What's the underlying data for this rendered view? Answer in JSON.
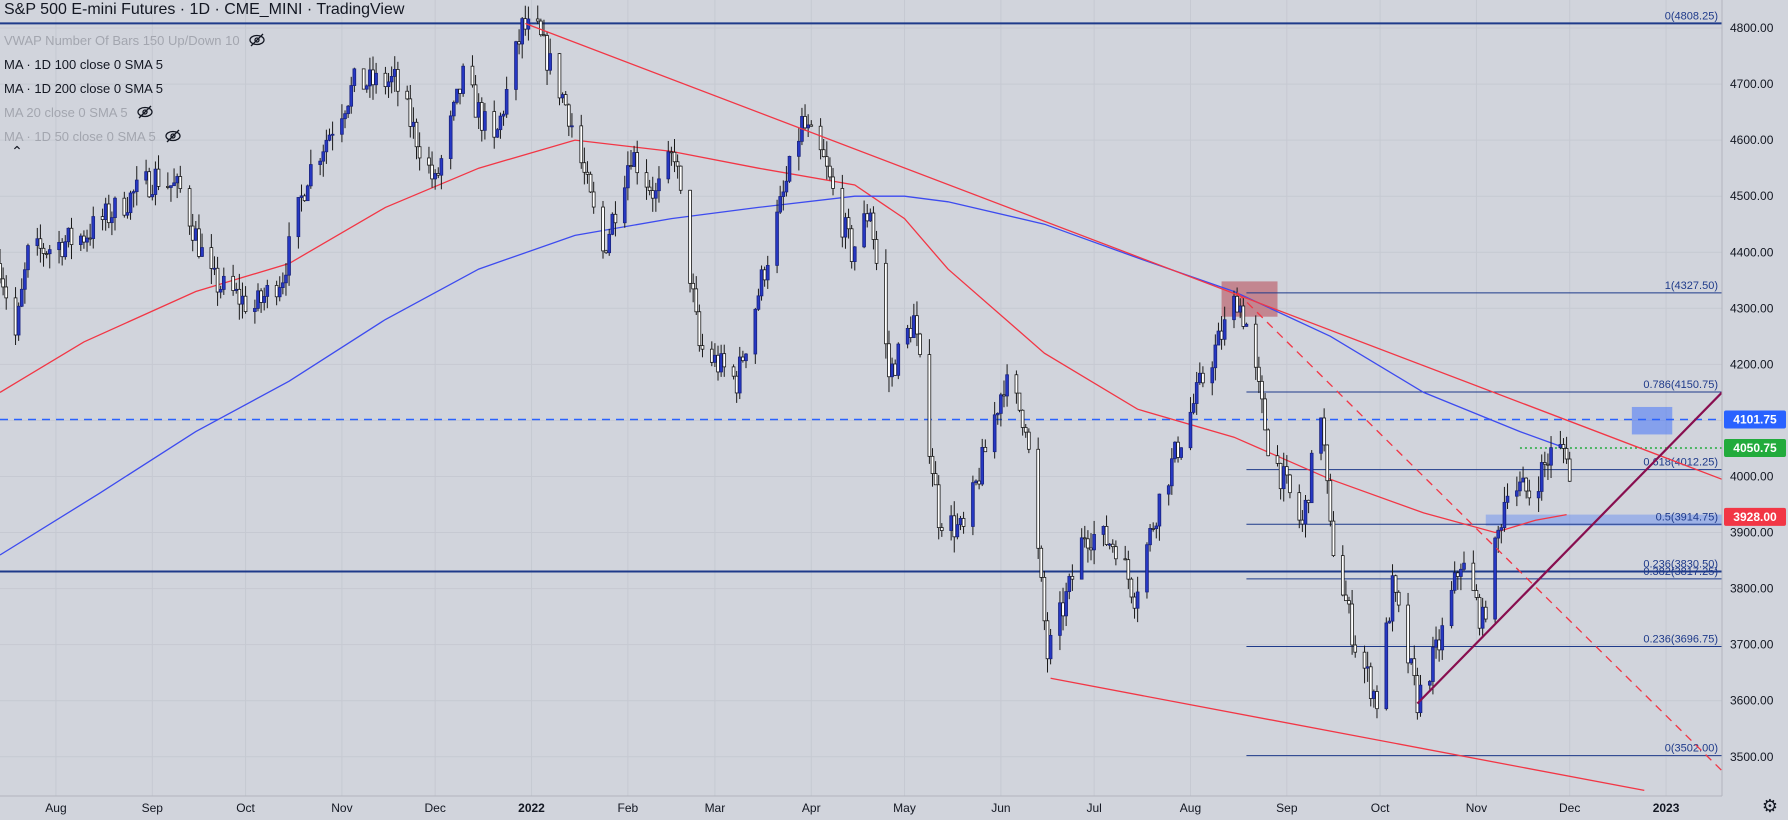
{
  "title": "S&P 500 E-mini Futures · 1D · CME_MINI · TradingView",
  "legend": [
    {
      "label": "VWAP Number Of Bars 150 Up/Down 10",
      "hidden": true
    },
    {
      "label": "MA · 1D 100 close 0 SMA 5",
      "hidden": false
    },
    {
      "label": "MA · 1D 200 close 0 SMA 5",
      "hidden": false
    },
    {
      "label": "MA 20 close 0 SMA 5",
      "hidden": true
    },
    {
      "label": "MA · 1D 50 close 0 SMA 5",
      "hidden": true
    }
  ],
  "icons": {
    "collapse": "chevron-up-icon",
    "settings": "gear-icon",
    "hidden_toggle": "eye-off-icon"
  },
  "chart_data": {
    "type": "candlestick",
    "y_range": [
      3430,
      4850
    ],
    "x_range": [
      "2021-07-14",
      "2023-01-19"
    ],
    "y_ticks": [
      3500,
      3600,
      3700,
      3800,
      3900,
      4000,
      4100,
      4200,
      4300,
      4400,
      4500,
      4600,
      4700,
      4800
    ],
    "y_tick_labels": [
      "3500.00",
      "3600.00",
      "3700.00",
      "3800.00",
      "3900.00",
      "4000.00",
      "4100.00",
      "4200.00",
      "4300.00",
      "4400.00",
      "4500.00",
      "4600.00",
      "4700.00",
      "4800.00"
    ],
    "x_ticks": [
      {
        "date": "2021-08-01",
        "label": "Aug",
        "bold": false
      },
      {
        "date": "2021-09-01",
        "label": "Sep",
        "bold": false
      },
      {
        "date": "2021-10-01",
        "label": "Oct",
        "bold": false
      },
      {
        "date": "2021-11-01",
        "label": "Nov",
        "bold": false
      },
      {
        "date": "2021-12-01",
        "label": "Dec",
        "bold": false
      },
      {
        "date": "2022-01-01",
        "label": "2022",
        "bold": true
      },
      {
        "date": "2022-02-01",
        "label": "Feb",
        "bold": false
      },
      {
        "date": "2022-03-01",
        "label": "Mar",
        "bold": false
      },
      {
        "date": "2022-04-01",
        "label": "Apr",
        "bold": false
      },
      {
        "date": "2022-05-01",
        "label": "May",
        "bold": false
      },
      {
        "date": "2022-06-01",
        "label": "Jun",
        "bold": false
      },
      {
        "date": "2022-07-01",
        "label": "Jul",
        "bold": false
      },
      {
        "date": "2022-08-01",
        "label": "Aug",
        "bold": false
      },
      {
        "date": "2022-09-01",
        "label": "Sep",
        "bold": false
      },
      {
        "date": "2022-10-01",
        "label": "Oct",
        "bold": false
      },
      {
        "date": "2022-11-01",
        "label": "Nov",
        "bold": false
      },
      {
        "date": "2022-12-01",
        "label": "Dec",
        "bold": false
      },
      {
        "date": "2023-01-01",
        "label": "2023",
        "bold": true
      }
    ],
    "price_path": [
      [
        "2021-07-14",
        4380
      ],
      [
        "2021-07-19",
        4250
      ],
      [
        "2021-07-23",
        4395
      ],
      [
        "2021-08-10",
        4430
      ],
      [
        "2021-09-02",
        4535
      ],
      [
        "2021-09-10",
        4510
      ],
      [
        "2021-09-20",
        4350
      ],
      [
        "2021-10-04",
        4300
      ],
      [
        "2021-10-13",
        4360
      ],
      [
        "2021-10-21",
        4540
      ],
      [
        "2021-11-05",
        4700
      ],
      [
        "2021-11-18",
        4705
      ],
      [
        "2021-11-26",
        4590
      ],
      [
        "2021-12-01",
        4520
      ],
      [
        "2021-12-10",
        4710
      ],
      [
        "2021-12-20",
        4590
      ],
      [
        "2021-12-29",
        4800
      ],
      [
        "2022-01-03",
        4790
      ],
      [
        "2022-01-13",
        4650
      ],
      [
        "2022-01-24",
        4400
      ],
      [
        "2022-02-02",
        4580
      ],
      [
        "2022-02-10",
        4500
      ],
      [
        "2022-02-16",
        4580
      ],
      [
        "2022-02-24",
        4230
      ],
      [
        "2022-03-08",
        4170
      ],
      [
        "2022-03-16",
        4350
      ],
      [
        "2022-03-29",
        4630
      ],
      [
        "2022-04-05",
        4560
      ],
      [
        "2022-04-14",
        4400
      ],
      [
        "2022-04-20",
        4480
      ],
      [
        "2022-04-26",
        4180
      ],
      [
        "2022-05-04",
        4280
      ],
      [
        "2022-05-12",
        3930
      ],
      [
        "2022-05-20",
        3900
      ],
      [
        "2022-06-02",
        4170
      ],
      [
        "2022-06-09",
        4100
      ],
      [
        "2022-06-16",
        3680
      ],
      [
        "2022-06-23",
        3800
      ],
      [
        "2022-06-28",
        3900
      ],
      [
        "2022-07-08",
        3880
      ],
      [
        "2022-07-14",
        3790
      ],
      [
        "2022-07-22",
        3960
      ],
      [
        "2022-08-04",
        4160
      ],
      [
        "2022-08-16",
        4320
      ],
      [
        "2022-08-19",
        4270
      ],
      [
        "2022-08-26",
        4060
      ],
      [
        "2022-09-06",
        3910
      ],
      [
        "2022-09-12",
        4120
      ],
      [
        "2022-09-15",
        3900
      ],
      [
        "2022-09-23",
        3700
      ],
      [
        "2022-09-30",
        3600
      ],
      [
        "2022-10-05",
        3800
      ],
      [
        "2022-10-13",
        3600
      ],
      [
        "2022-10-20",
        3700
      ],
      [
        "2022-10-27",
        3850
      ],
      [
        "2022-11-03",
        3740
      ],
      [
        "2022-11-11",
        3990
      ],
      [
        "2022-11-18",
        3970
      ],
      [
        "2022-11-25",
        4040
      ],
      [
        "2022-11-30",
        4050
      ],
      [
        "2022-12-01",
        3990
      ]
    ],
    "sma_100": [
      [
        "2021-07-14",
        4150
      ],
      [
        "2021-08-10",
        4240
      ],
      [
        "2021-09-15",
        4330
      ],
      [
        "2021-10-15",
        4380
      ],
      [
        "2021-11-15",
        4480
      ],
      [
        "2021-12-15",
        4550
      ],
      [
        "2022-01-15",
        4600
      ],
      [
        "2022-02-15",
        4580
      ],
      [
        "2022-03-15",
        4550
      ],
      [
        "2022-04-15",
        4520
      ],
      [
        "2022-05-01",
        4460
      ],
      [
        "2022-05-15",
        4370
      ],
      [
        "2022-06-15",
        4220
      ],
      [
        "2022-07-15",
        4120
      ],
      [
        "2022-08-15",
        4070
      ],
      [
        "2022-09-15",
        3995
      ],
      [
        "2022-10-15",
        3935
      ],
      [
        "2022-11-07",
        3900
      ],
      [
        "2022-11-20",
        3922
      ],
      [
        "2022-11-30",
        3932
      ]
    ],
    "sma_200": [
      [
        "2021-07-14",
        3860
      ],
      [
        "2021-08-15",
        3970
      ],
      [
        "2021-09-15",
        4080
      ],
      [
        "2021-10-15",
        4170
      ],
      [
        "2021-11-15",
        4280
      ],
      [
        "2021-12-15",
        4370
      ],
      [
        "2022-01-15",
        4430
      ],
      [
        "2022-02-15",
        4460
      ],
      [
        "2022-03-15",
        4480
      ],
      [
        "2022-04-15",
        4500
      ],
      [
        "2022-05-01",
        4500
      ],
      [
        "2022-05-15",
        4490
      ],
      [
        "2022-06-15",
        4450
      ],
      [
        "2022-07-15",
        4390
      ],
      [
        "2022-08-15",
        4330
      ],
      [
        "2022-09-15",
        4250
      ],
      [
        "2022-10-15",
        4150
      ],
      [
        "2022-11-15",
        4080
      ],
      [
        "2022-11-30",
        4050
      ]
    ],
    "fibonacci": {
      "date_start": "2022-08-19",
      "date_end": "2023-01-19",
      "levels": [
        {
          "price": 4808.25,
          "label": "0(4808.25)"
        },
        {
          "price": 4327.5,
          "label": "1(4327.50)"
        },
        {
          "price": 4150.75,
          "label": "0.786(4150.75)"
        },
        {
          "price": 4012.25,
          "label": "0.618(4012.25)"
        },
        {
          "price": 3914.75,
          "label": "0.5(3914.75)"
        },
        {
          "price": 3830.5,
          "label": "0.236(3830.50)"
        },
        {
          "price": 3817.25,
          "label": "0.382(3817.25)"
        },
        {
          "price": 3696.75,
          "label": "0.236(3696.75)"
        },
        {
          "price": 3502.0,
          "label": "0(3502.00)"
        }
      ]
    },
    "horizontal_lines": [
      {
        "price": 4808.25,
        "style": "solid",
        "color": "#1e3a8a"
      },
      {
        "price": 3830.5,
        "style": "solid",
        "color": "#1e3a8a"
      },
      {
        "price": 4101.75,
        "style": "dashed",
        "color": "#2962ff"
      },
      {
        "price": 4050.75,
        "style": "dotted",
        "color": "#22ab3c",
        "date_start": "2022-11-15"
      }
    ],
    "trendlines": [
      {
        "from": [
          "2021-12-30",
          4808
        ],
        "to": [
          "2023-01-19",
          3995
        ],
        "color": "#f23645",
        "style": "solid"
      },
      {
        "from": [
          "2022-06-17",
          3640
        ],
        "to": [
          "2022-12-25",
          3440
        ],
        "color": "#f23645",
        "style": "solid"
      },
      {
        "from": [
          "2022-08-16",
          4328
        ],
        "to": [
          "2023-01-19",
          3475
        ],
        "color": "#f23645",
        "style": "dashed"
      },
      {
        "from": [
          "2022-10-13",
          3595
        ],
        "to": [
          "2023-01-19",
          4150
        ],
        "color": "#880e4f",
        "style": "solid"
      }
    ],
    "zones": [
      {
        "date_start": "2022-08-11",
        "date_end": "2022-08-29",
        "price_low": 4285,
        "price_high": 4348,
        "color": "rgba(178,40,51,0.45)"
      },
      {
        "date_start": "2022-12-21",
        "date_end": "2023-01-03",
        "price_low": 4075,
        "price_high": 4124,
        "color": "rgba(41,98,255,0.45)"
      },
      {
        "date_start": "2022-11-04",
        "date_end": "2023-01-19",
        "price_low": 3912,
        "price_high": 3932,
        "color": "rgba(41,98,255,0.30)"
      }
    ],
    "price_badges": [
      {
        "price": 4101.75,
        "label": "4101.75",
        "color": "#2962ff"
      },
      {
        "price": 4050.75,
        "label": "4050.75",
        "color": "#22ab3c"
      },
      {
        "price": 3928.0,
        "label": "3928.00",
        "color": "#f23645"
      }
    ]
  }
}
